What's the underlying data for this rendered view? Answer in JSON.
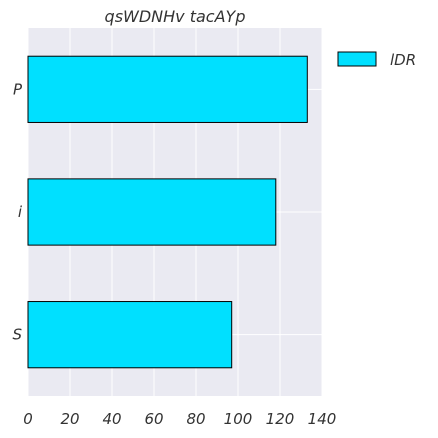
{
  "chart_data": {
    "type": "bar",
    "orientation": "horizontal",
    "title": "qsWDNHv tacAYp",
    "xlabel": "",
    "ylabel": "",
    "categories": [
      "P",
      "i",
      "S"
    ],
    "series": [
      {
        "name": "lDR",
        "values": [
          133,
          118,
          97
        ],
        "color": "#00e0ff"
      }
    ],
    "xlim": [
      0,
      140
    ],
    "xticks": [
      0,
      20,
      40,
      60,
      80,
      100,
      120,
      140
    ],
    "grid": true,
    "legend": "top-right"
  }
}
